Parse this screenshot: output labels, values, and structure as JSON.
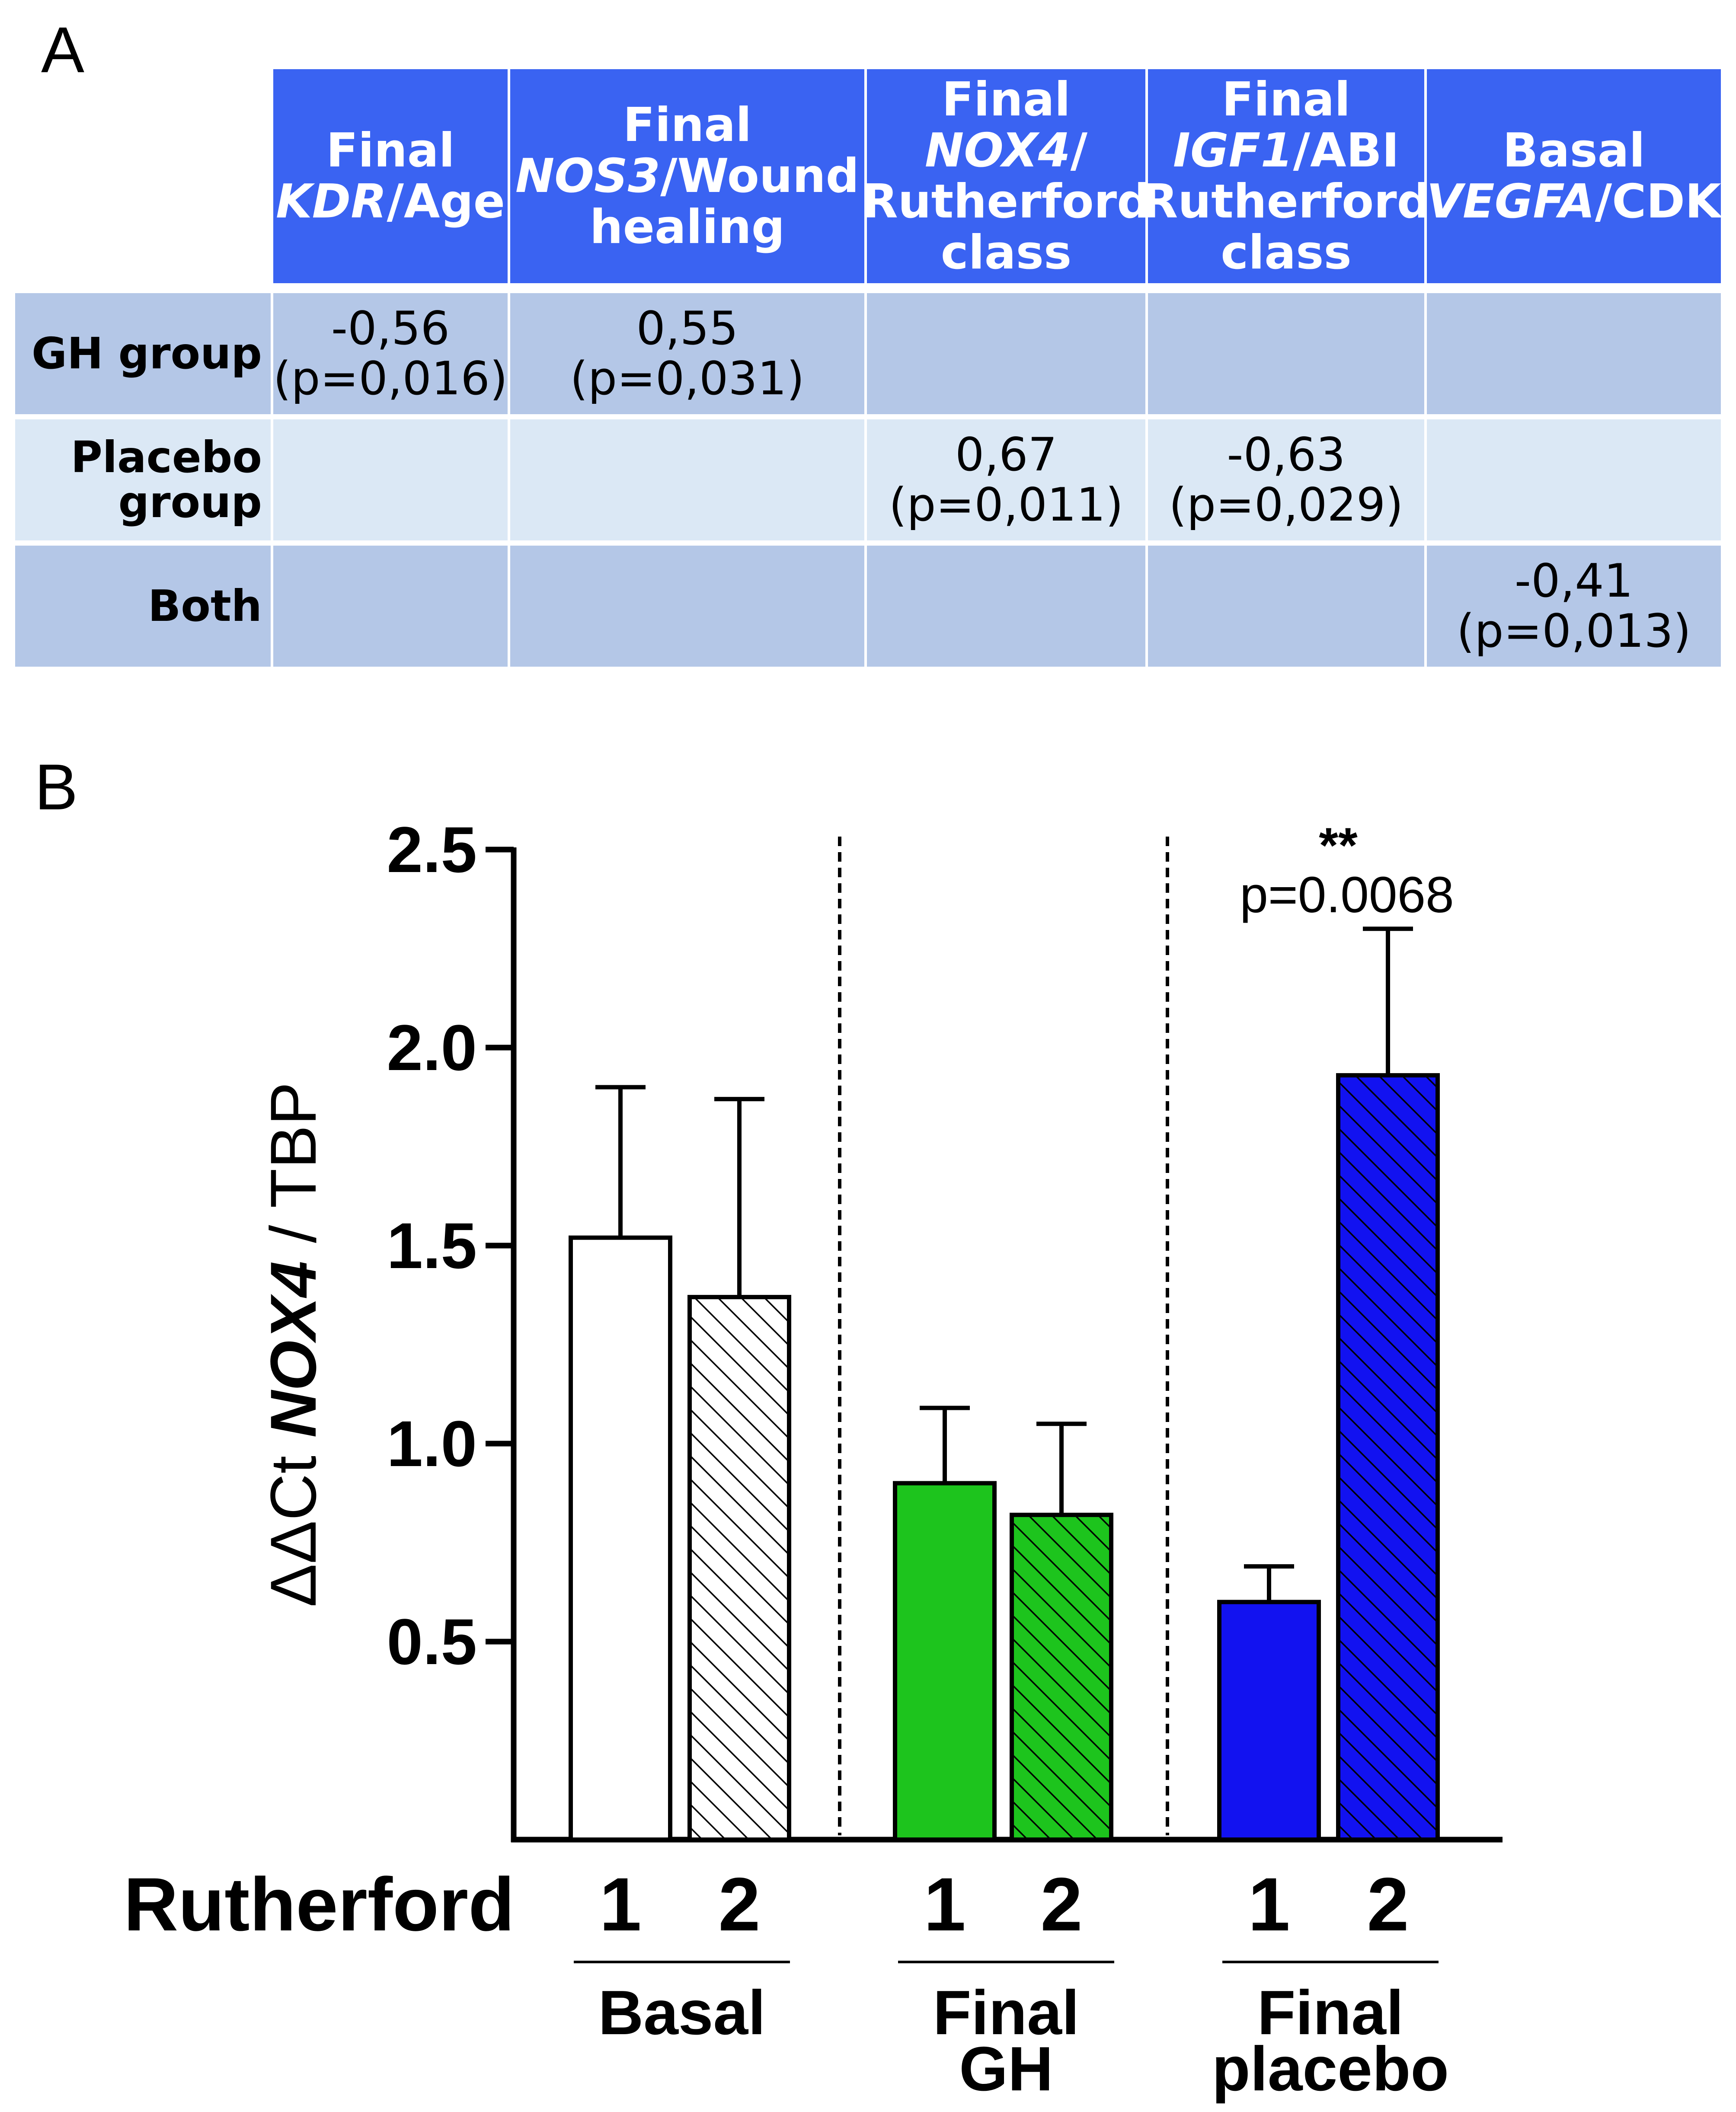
{
  "panel_a": {
    "label": "A",
    "headers": [
      {
        "pre": "Final",
        "italic": "KDR",
        "post": "/Age",
        "line3": ""
      },
      {
        "pre": "Final",
        "italic": "NOS3",
        "post": "/Wound",
        "line3": "healing"
      },
      {
        "pre": "Final",
        "italic": "NOX4",
        "post": "/",
        "line3": "Rutherford",
        "line4": "class"
      },
      {
        "pre": "Final",
        "italic": "IGF1",
        "post": "/ABI",
        "line3": "Rutherford",
        "line4": "class"
      },
      {
        "pre": "Basal",
        "italic": "VEGFA",
        "post": "/CDK",
        "line3": ""
      }
    ],
    "rows": [
      {
        "name_line1": "GH group",
        "name_line2": "",
        "cells": [
          [
            "-0,56",
            "(p=0,016)"
          ],
          [
            "0,55",
            "(p=0,031)"
          ],
          [
            "",
            ""
          ],
          [
            "",
            ""
          ],
          [
            "",
            ""
          ]
        ]
      },
      {
        "name_line1": "Placebo",
        "name_line2": "group",
        "cells": [
          [
            "",
            ""
          ],
          [
            "",
            ""
          ],
          [
            "0,67",
            "(p=0,011)"
          ],
          [
            "-0,63",
            "(p=0,029)"
          ],
          [
            "",
            ""
          ]
        ]
      },
      {
        "name_line1": "Both",
        "name_line2": "",
        "cells": [
          [
            "",
            ""
          ],
          [
            "",
            ""
          ],
          [
            "",
            ""
          ],
          [
            "",
            ""
          ],
          [
            "-0,41",
            "(p=0,013)"
          ]
        ]
      }
    ]
  },
  "panel_b": {
    "label": "B"
  },
  "chart_data": {
    "type": "bar",
    "title": "",
    "ylabel_pre": "ΔΔCt ",
    "ylabel_italic": "NOX4",
    "ylabel_post": " / TBP",
    "xlabel": "Rutherford",
    "ylim": [
      0.0,
      2.5
    ],
    "yticks": [
      "0.5",
      "1.0",
      "1.5",
      "2.0",
      "2.5"
    ],
    "ytick_values": [
      0.5,
      1.0,
      1.5,
      2.0,
      2.5
    ],
    "categories": [
      "1",
      "2",
      "1",
      "2",
      "1",
      "2"
    ],
    "groups": [
      {
        "label_line1": "Basal",
        "label_line2": ""
      },
      {
        "label_line1": "Final",
        "label_line2": "GH"
      },
      {
        "label_line1": "Final",
        "label_line2": "placebo"
      }
    ],
    "values": [
      1.52,
      1.37,
      0.9,
      0.82,
      0.6,
      1.93
    ],
    "errors": [
      0.38,
      0.5,
      0.19,
      0.23,
      0.09,
      0.37
    ],
    "colors": [
      "#ffffff",
      "#ffffff",
      "#1dc41d",
      "#1dc41d",
      "#1212f0",
      "#1212f0"
    ],
    "hatched": [
      false,
      true,
      false,
      true,
      false,
      true
    ],
    "annotation": {
      "stars": "**",
      "p_text": "p=0.0068"
    }
  }
}
